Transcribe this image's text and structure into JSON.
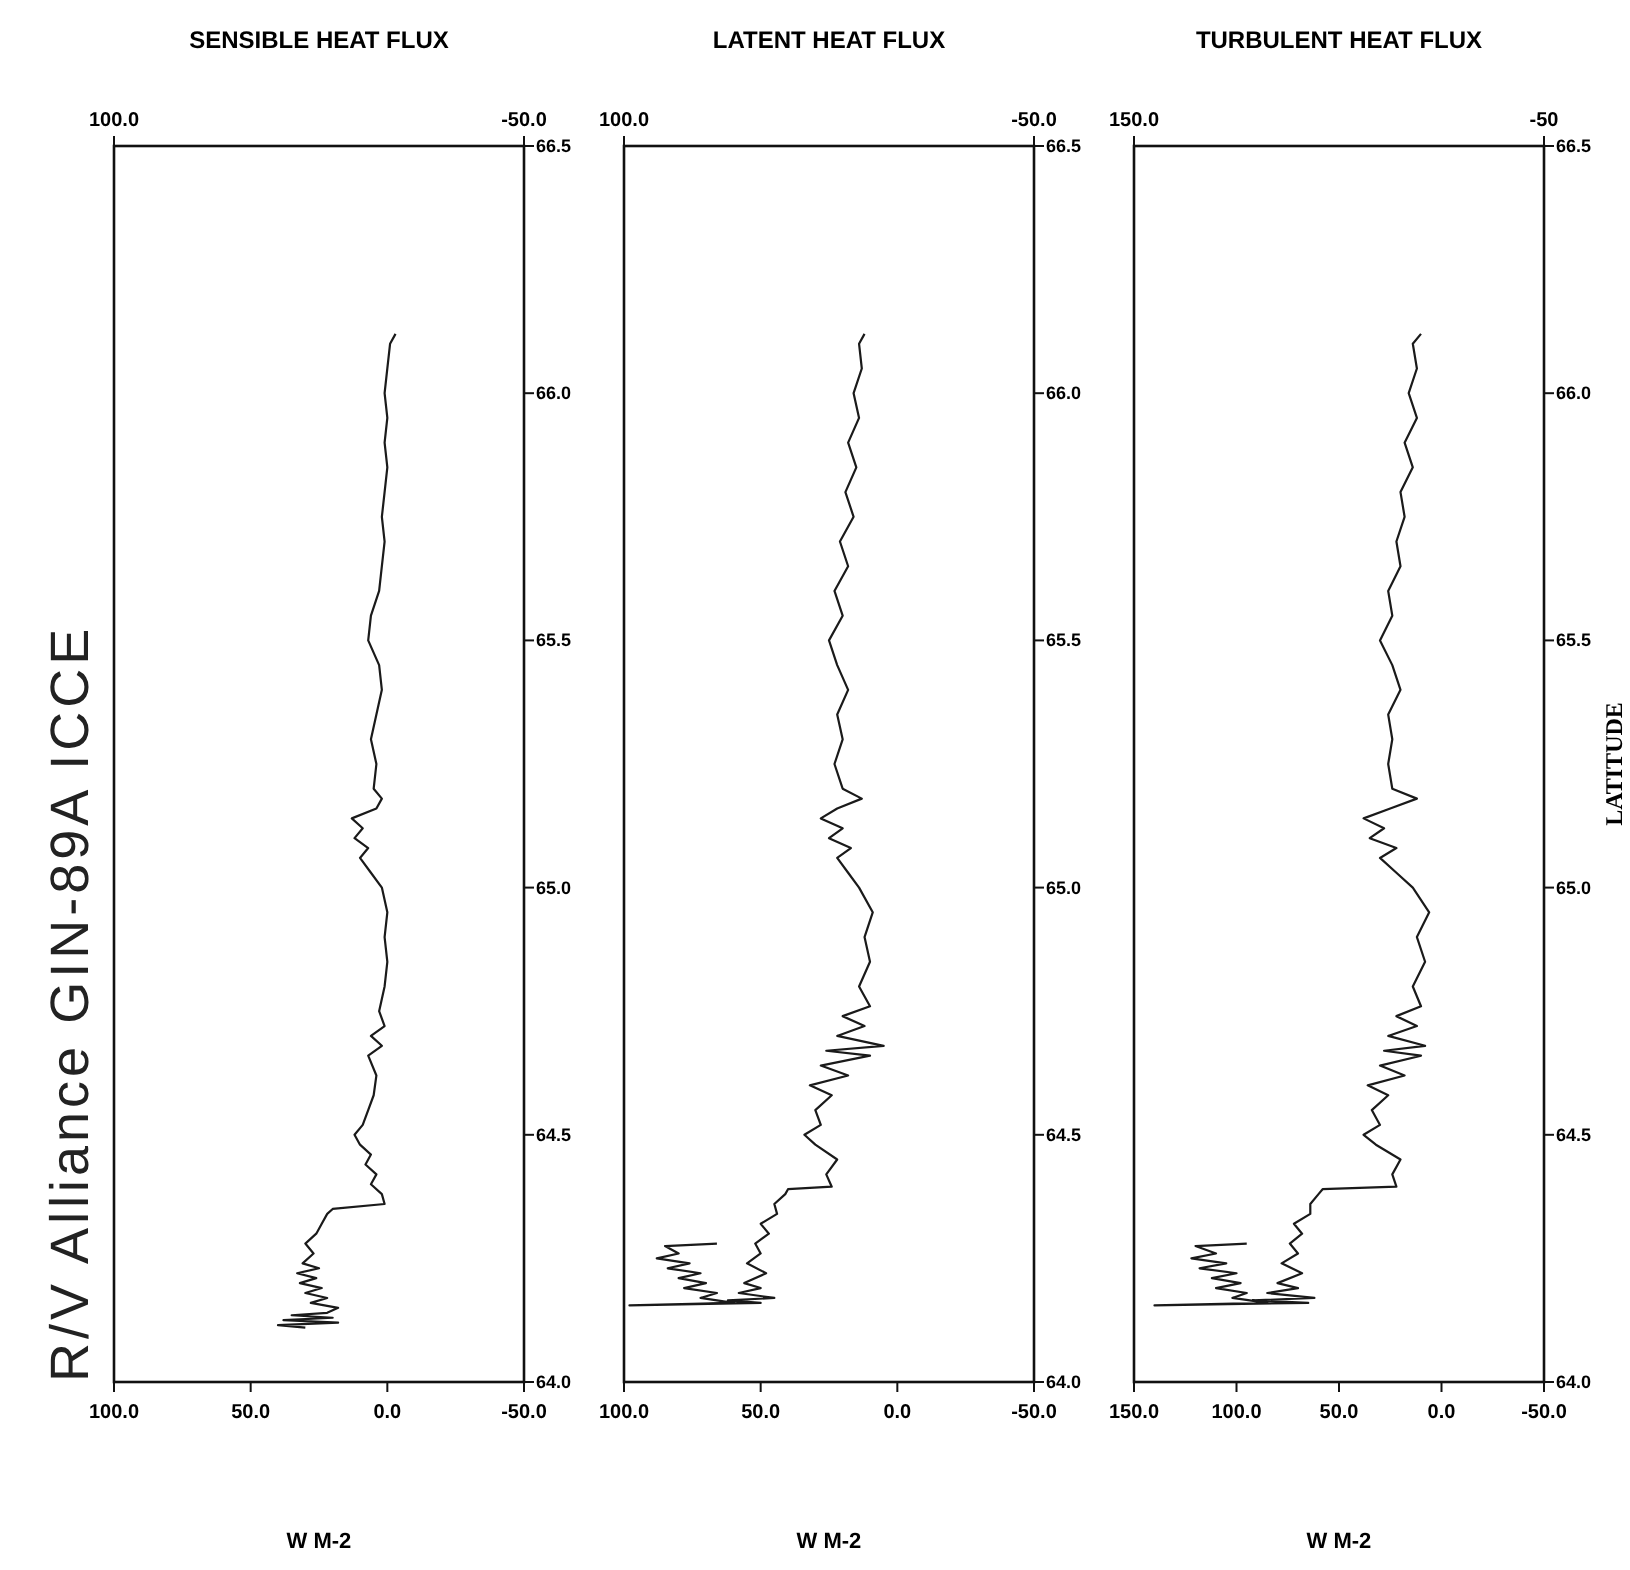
{
  "chart_data": [
    {
      "type": "line",
      "title": "R/V Alliance GIN-89A ICCE",
      "xlabel": "W M-2",
      "x2label": "SENSIBLE HEAT FLUX",
      "ylim": [
        64,
        66.5
      ],
      "yticks": [
        {
          "value": 64,
          "label": "64.0"
        },
        {
          "value": 64.5,
          "label": "64.5"
        },
        {
          "value": 65,
          "label": "65.0"
        },
        {
          "value": 65.5,
          "label": "65.5"
        },
        {
          "value": 66,
          "label": "66.0"
        },
        {
          "value": 66.5,
          "label": "66.5"
        }
      ],
      "xlim": [
        100,
        -50
      ],
      "xticks": [
        {
          "value": 100,
          "label": "100.0"
        },
        {
          "value": 50,
          "label": "50.0"
        },
        {
          "value": 0,
          "label": "0.0"
        },
        {
          "value": -50,
          "label": "-50.0"
        }
      ],
      "x2lim": [
        100,
        -50
      ],
      "x2ticks": [
        {
          "value": 100,
          "label": "100.0"
        },
        {
          "value": -50,
          "label": "-50.0"
        }
      ],
      "series": [
        {
          "color": "#1a1a1a",
          "values": [
            64.11,
            64.115,
            64.12,
            64.125,
            64.13,
            64.135,
            64.14,
            64.15,
            64.16,
            64.17,
            64.18,
            64.19,
            64.2,
            64.21,
            64.22,
            64.23,
            64.24,
            64.26,
            64.28,
            64.3,
            64.32,
            64.34,
            64.35,
            64.36,
            64.38,
            64.4,
            64.42,
            64.44,
            64.46,
            64.48,
            64.5,
            64.52,
            64.55,
            64.58,
            64.62,
            64.66,
            64.68,
            64.7,
            64.72,
            64.75,
            64.8,
            64.85,
            64.9,
            64.95,
            65,
            65.03,
            65.06,
            65.08,
            65.1,
            65.12,
            65.14,
            65.16,
            65.18,
            65.2,
            65.25,
            65.3,
            65.35,
            65.4,
            65.45,
            65.5,
            65.55,
            65.6,
            65.65,
            65.7,
            65.75,
            65.8,
            65.85,
            65.9,
            65.95,
            66,
            66.05,
            66.1,
            66.12
          ],
          "x": [
            30,
            40,
            18,
            38,
            20,
            35,
            22,
            18,
            28,
            22,
            30,
            24,
            32,
            26,
            33,
            25,
            31,
            27,
            30,
            26,
            24,
            22,
            20,
            1,
            2,
            6,
            4,
            8,
            6,
            10,
            12,
            9,
            7,
            5,
            4,
            7,
            2,
            6,
            1,
            3,
            1,
            0,
            1,
            0,
            2,
            6,
            10,
            7,
            12,
            9,
            13,
            4,
            2,
            5,
            4,
            6,
            4,
            2,
            3,
            7,
            6,
            3,
            2,
            1,
            2,
            1,
            0,
            1,
            0,
            1,
            0,
            -1,
            -3
          ]
        }
      ]
    },
    {
      "type": "line",
      "xlabel": "W M-2",
      "x2label": "LATENT HEAT FLUX",
      "ylim": [
        64,
        66.5
      ],
      "yticks": [
        {
          "value": 64,
          "label": "64.0"
        },
        {
          "value": 64.5,
          "label": "64.5"
        },
        {
          "value": 65,
          "label": "65.0"
        },
        {
          "value": 65.5,
          "label": "65.5"
        },
        {
          "value": 66,
          "label": "66.0"
        },
        {
          "value": 66.5,
          "label": "66.5"
        }
      ],
      "xlim": [
        100,
        -50
      ],
      "xticks": [
        {
          "value": 100,
          "label": "100.0"
        },
        {
          "value": 50,
          "label": "50.0"
        },
        {
          "value": 0,
          "label": "0.0"
        },
        {
          "value": -50,
          "label": "-50.0"
        }
      ],
      "x2lim": [
        100,
        -50
      ],
      "x2ticks": [
        {
          "value": 100,
          "label": "100.0"
        },
        {
          "value": -50,
          "label": "-50.0"
        }
      ],
      "series": [
        {
          "color": "#1a1a1a",
          "values": [
            64.28,
            64.275,
            64.26,
            64.25,
            64.24,
            64.23,
            64.22,
            64.21,
            64.2,
            64.19,
            64.18,
            64.17,
            64.16,
            64.155,
            64.16,
            64.165,
            64.17,
            64.18,
            64.19,
            64.2,
            64.22,
            64.24,
            64.26,
            64.28,
            64.3,
            64.32,
            64.34,
            64.36,
            64.38,
            64.39,
            64.395,
            64.42,
            64.45,
            64.48,
            64.5,
            64.52,
            64.55,
            64.58,
            64.6,
            64.62,
            64.64,
            64.66,
            64.67,
            64.68,
            64.7,
            64.72,
            64.74,
            64.76,
            64.8,
            64.85,
            64.9,
            64.95,
            65,
            65.03,
            65.06,
            65.08,
            65.1,
            65.12,
            65.14,
            65.16,
            65.18,
            65.2,
            65.25,
            65.3,
            65.35,
            65.4,
            65.45,
            65.5,
            65.55,
            65.6,
            65.65,
            65.7,
            65.75,
            65.8,
            65.85,
            65.9,
            65.95,
            66,
            66.05,
            66.1,
            66.12
          ],
          "x": [
            66,
            85,
            80,
            88,
            76,
            84,
            72,
            80,
            70,
            78,
            66,
            72,
            60,
            98,
            50,
            62,
            45,
            58,
            50,
            56,
            48,
            55,
            50,
            52,
            47,
            50,
            44,
            45,
            41,
            40,
            24,
            26,
            22,
            30,
            34,
            28,
            30,
            24,
            32,
            18,
            28,
            10,
            26,
            5,
            22,
            12,
            20,
            10,
            14,
            10,
            12,
            9,
            14,
            18,
            22,
            17,
            25,
            20,
            28,
            22,
            13,
            20,
            23,
            20,
            22,
            18,
            22,
            25,
            20,
            23,
            18,
            21,
            16,
            19,
            15,
            18,
            14,
            16,
            13,
            14,
            12
          ]
        }
      ]
    },
    {
      "type": "line",
      "xlabel": "W M-2",
      "x2label": "TURBULENT HEAT FLUX",
      "ylabel": "LATITUDE",
      "ylim": [
        64,
        66.5
      ],
      "yticks": [
        {
          "value": 64,
          "label": "64.0"
        },
        {
          "value": 64.5,
          "label": "64.5"
        },
        {
          "value": 65,
          "label": "65.0"
        },
        {
          "value": 65.5,
          "label": "65.5"
        },
        {
          "value": 66,
          "label": "66.0"
        },
        {
          "value": 66.5,
          "label": "66.5"
        }
      ],
      "xlim": [
        150,
        -50
      ],
      "xticks": [
        {
          "value": 150,
          "label": "150.0"
        },
        {
          "value": 100,
          "label": "100.0"
        },
        {
          "value": 50,
          "label": "50.0"
        },
        {
          "value": 0,
          "label": "0.0"
        },
        {
          "value": -50,
          "label": "-50.0"
        }
      ],
      "x2lim": [
        150,
        -50
      ],
      "x2ticks": [
        {
          "value": 150,
          "label": "150.0"
        },
        {
          "value": -50,
          "label": "-50"
        }
      ],
      "series": [
        {
          "color": "#1a1a1a",
          "values": [
            64.28,
            64.275,
            64.26,
            64.25,
            64.24,
            64.23,
            64.22,
            64.21,
            64.2,
            64.19,
            64.18,
            64.17,
            64.16,
            64.155,
            64.16,
            64.165,
            64.17,
            64.18,
            64.19,
            64.2,
            64.22,
            64.24,
            64.26,
            64.28,
            64.3,
            64.32,
            64.34,
            64.36,
            64.38,
            64.39,
            64.395,
            64.42,
            64.45,
            64.48,
            64.5,
            64.52,
            64.55,
            64.58,
            64.6,
            64.62,
            64.64,
            64.66,
            64.67,
            64.68,
            64.7,
            64.72,
            64.74,
            64.76,
            64.8,
            64.85,
            64.9,
            64.95,
            65,
            65.03,
            65.06,
            65.08,
            65.1,
            65.12,
            65.14,
            65.16,
            65.18,
            65.2,
            65.25,
            65.3,
            65.35,
            65.4,
            65.45,
            65.5,
            65.55,
            65.6,
            65.65,
            65.7,
            65.75,
            65.8,
            65.85,
            65.9,
            65.95,
            66,
            66.05,
            66.1,
            66.12
          ],
          "x": [
            95,
            120,
            110,
            122,
            105,
            118,
            100,
            112,
            98,
            110,
            95,
            102,
            85,
            140,
            65,
            92,
            62,
            85,
            70,
            80,
            68,
            78,
            70,
            74,
            68,
            72,
            64,
            64,
            60,
            58,
            22,
            24,
            20,
            32,
            38,
            30,
            34,
            26,
            36,
            18,
            30,
            10,
            28,
            8,
            26,
            12,
            22,
            10,
            14,
            8,
            12,
            6,
            14,
            22,
            30,
            22,
            35,
            28,
            38,
            25,
            12,
            24,
            26,
            24,
            26,
            20,
            24,
            30,
            24,
            26,
            20,
            22,
            18,
            20,
            14,
            18,
            12,
            16,
            12,
            14,
            10
          ]
        }
      ]
    }
  ]
}
